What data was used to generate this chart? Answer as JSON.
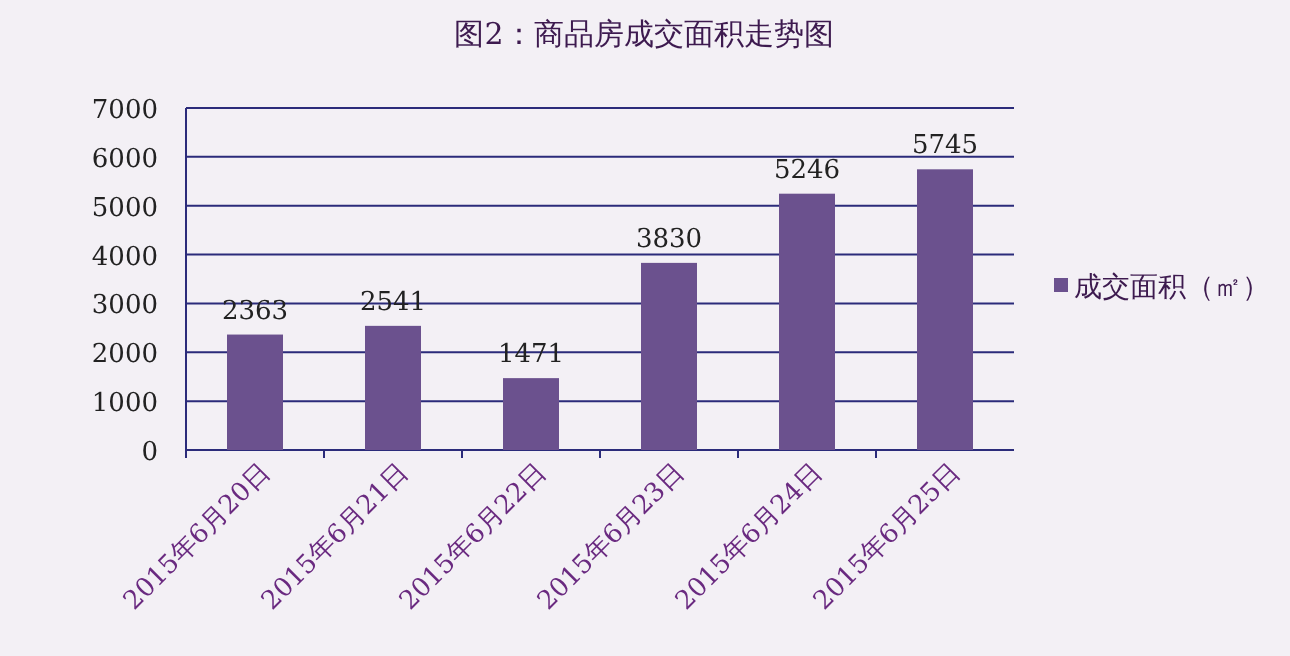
{
  "chart_data": {
    "type": "bar",
    "title": "图2：商品房成交面积走势图",
    "categories": [
      "2015年6月20日",
      "2015年6月21日",
      "2015年6月22日",
      "2015年6月23日",
      "2015年6月24日",
      "2015年6月25日"
    ],
    "series": [
      {
        "name": "成交面积（㎡）",
        "color": "#6b518e",
        "values": [
          2363,
          2541,
          1471,
          3830,
          5246,
          5745
        ]
      }
    ],
    "ylim": [
      0,
      7000
    ],
    "yticks": [
      0,
      1000,
      2000,
      3000,
      4000,
      5000,
      6000,
      7000
    ],
    "grid": "y",
    "legend": "right",
    "data_labels": true
  }
}
